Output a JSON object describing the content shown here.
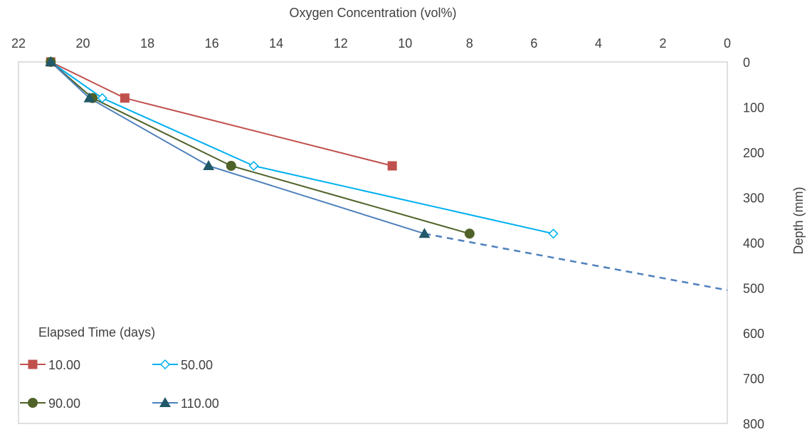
{
  "chart_data": {
    "type": "line",
    "xlabel": "Oxygen Concentration (vol%)",
    "ylabel": "Depth (mm)",
    "xlim": [
      22,
      0
    ],
    "ylim": [
      0,
      800
    ],
    "x_reversed": true,
    "x_axis_position": "top",
    "y_axis_position": "right",
    "x_ticks": [
      "22",
      "20",
      "18",
      "16",
      "14",
      "12",
      "10",
      "8",
      "6",
      "4",
      "2",
      "0"
    ],
    "y_ticks": [
      "0",
      "100",
      "200",
      "300",
      "400",
      "500",
      "600",
      "700",
      "800"
    ],
    "grid": false,
    "legend": {
      "title": "Elapsed Time (days)",
      "position": "bottom-left"
    },
    "series": [
      {
        "name": "10.00",
        "color": "#C0504D",
        "marker": "square",
        "points": [
          {
            "x": 21.0,
            "y": 0
          },
          {
            "x": 18.7,
            "y": 80
          },
          {
            "x": 10.4,
            "y": 230
          }
        ]
      },
      {
        "name": "50.00",
        "color": "#00B0F0",
        "marker": "diamond-open",
        "points": [
          {
            "x": 21.0,
            "y": 0
          },
          {
            "x": 19.4,
            "y": 80
          },
          {
            "x": 14.7,
            "y": 230
          },
          {
            "x": 5.4,
            "y": 380
          }
        ]
      },
      {
        "name": "90.00",
        "color": "#4F6228",
        "marker": "circle",
        "points": [
          {
            "x": 21.0,
            "y": 0
          },
          {
            "x": 19.7,
            "y": 80
          },
          {
            "x": 15.4,
            "y": 230
          },
          {
            "x": 8.0,
            "y": 380
          }
        ]
      },
      {
        "name": "110.00",
        "color": "#4F81BD",
        "marker_color": "#215968",
        "marker": "triangle",
        "points": [
          {
            "x": 21.0,
            "y": 0
          },
          {
            "x": 19.8,
            "y": 80
          },
          {
            "x": 16.1,
            "y": 230
          },
          {
            "x": 9.4,
            "y": 380
          }
        ]
      }
    ],
    "extrapolation": {
      "series": "110.00",
      "color": "#4F81BD",
      "style": "dashed",
      "points": [
        {
          "x": 9.4,
          "y": 380
        },
        {
          "x": 0,
          "y": 505
        }
      ]
    }
  }
}
